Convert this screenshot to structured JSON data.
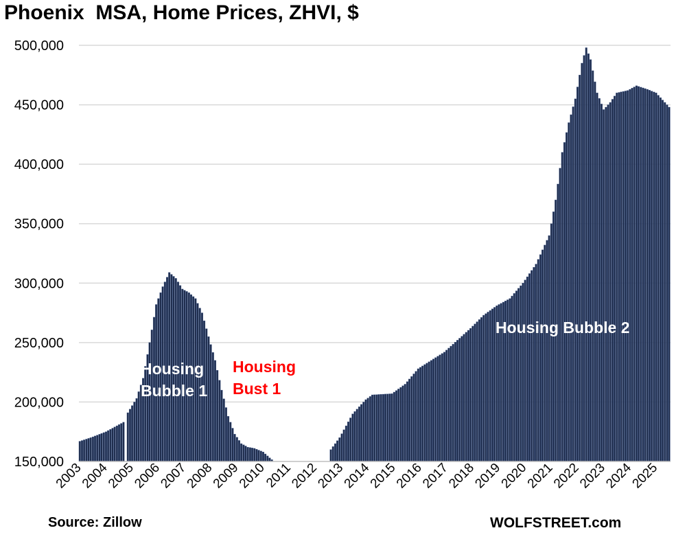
{
  "title": "Phoenix  MSA, Home Prices, ZHVI, $",
  "source": "Source: Zillow",
  "brand": "WOLFSTREET.com",
  "colors": {
    "bar": "#1f2d4d",
    "bar_edge": "#3b5486",
    "grid": "#d9d9d9",
    "bust_text": "#ff0000",
    "bubble_text": "#ffffff"
  },
  "chart_data": {
    "type": "bar",
    "title": "Phoenix  MSA, Home Prices, ZHVI, $",
    "xlabel": "",
    "ylabel": "",
    "ylim": [
      150000,
      500000
    ],
    "yticks": [
      150000,
      200000,
      250000,
      300000,
      350000,
      400000,
      450000,
      500000
    ],
    "ytick_labels": [
      "150,000",
      "200,000",
      "250,000",
      "300,000",
      "350,000",
      "400,000",
      "450,000",
      "500,000"
    ],
    "xticks": [
      "2003",
      "2004",
      "2005",
      "2006",
      "2007",
      "2008",
      "2009",
      "2010",
      "2011",
      "2012",
      "2013",
      "2014",
      "2015",
      "2016",
      "2017",
      "2018",
      "2019",
      "2020",
      "2021",
      "2022",
      "2023",
      "2024",
      "2025"
    ],
    "grid": true,
    "legend": "none",
    "frequency": "monthly",
    "start": "2003-01",
    "end": "2025-07",
    "note_gap": "series missing Oct 2004 and Jan 2011 – Jul 2012 (below axis minimum)",
    "anchors": [
      [
        "2003-01",
        167000
      ],
      [
        "2003-06",
        170000
      ],
      [
        "2004-01",
        175000
      ],
      [
        "2004-06",
        180000
      ],
      [
        "2004-09",
        183000
      ],
      [
        "2004-10",
        null
      ],
      [
        "2004-11",
        191000
      ],
      [
        "2005-03",
        203000
      ],
      [
        "2005-06",
        220000
      ],
      [
        "2005-09",
        250000
      ],
      [
        "2005-12",
        282000
      ],
      [
        "2006-03",
        297000
      ],
      [
        "2006-06",
        309000
      ],
      [
        "2006-09",
        304000
      ],
      [
        "2006-12",
        295000
      ],
      [
        "2007-03",
        292000
      ],
      [
        "2007-06",
        287000
      ],
      [
        "2007-09",
        275000
      ],
      [
        "2007-12",
        255000
      ],
      [
        "2008-03",
        235000
      ],
      [
        "2008-06",
        210000
      ],
      [
        "2008-09",
        188000
      ],
      [
        "2008-12",
        173000
      ],
      [
        "2009-03",
        165000
      ],
      [
        "2009-06",
        162000
      ],
      [
        "2009-09",
        161000
      ],
      [
        "2010-01",
        158000
      ],
      [
        "2010-04",
        153000
      ],
      [
        "2010-06",
        150000
      ],
      [
        "2011-01",
        null
      ],
      [
        "2012-07",
        null
      ],
      [
        "2012-08",
        160000
      ],
      [
        "2012-12",
        170000
      ],
      [
        "2013-06",
        190000
      ],
      [
        "2013-12",
        202000
      ],
      [
        "2014-03",
        206000
      ],
      [
        "2014-12",
        207000
      ],
      [
        "2015-06",
        215000
      ],
      [
        "2015-12",
        228000
      ],
      [
        "2016-06",
        235000
      ],
      [
        "2016-12",
        242000
      ],
      [
        "2017-06",
        252000
      ],
      [
        "2017-12",
        262000
      ],
      [
        "2018-06",
        273000
      ],
      [
        "2018-12",
        281000
      ],
      [
        "2019-06",
        287000
      ],
      [
        "2019-12",
        300000
      ],
      [
        "2020-06",
        316000
      ],
      [
        "2020-12",
        340000
      ],
      [
        "2021-03",
        370000
      ],
      [
        "2021-06",
        410000
      ],
      [
        "2021-09",
        435000
      ],
      [
        "2021-12",
        455000
      ],
      [
        "2022-03",
        485000
      ],
      [
        "2022-05",
        498000
      ],
      [
        "2022-07",
        488000
      ],
      [
        "2022-10",
        460000
      ],
      [
        "2023-01",
        446000
      ],
      [
        "2023-04",
        452000
      ],
      [
        "2023-07",
        460000
      ],
      [
        "2023-12",
        462000
      ],
      [
        "2024-04",
        466000
      ],
      [
        "2024-09",
        463000
      ],
      [
        "2025-01",
        460000
      ],
      [
        "2025-04",
        454000
      ],
      [
        "2025-07",
        448000
      ]
    ],
    "annotations": [
      {
        "text": "Housing\nBubble 1",
        "color": "#ffffff"
      },
      {
        "text": "Housing\nBust 1",
        "color": "#ff0000"
      },
      {
        "text": "Housing Bubble 2",
        "color": "#ffffff"
      }
    ]
  }
}
